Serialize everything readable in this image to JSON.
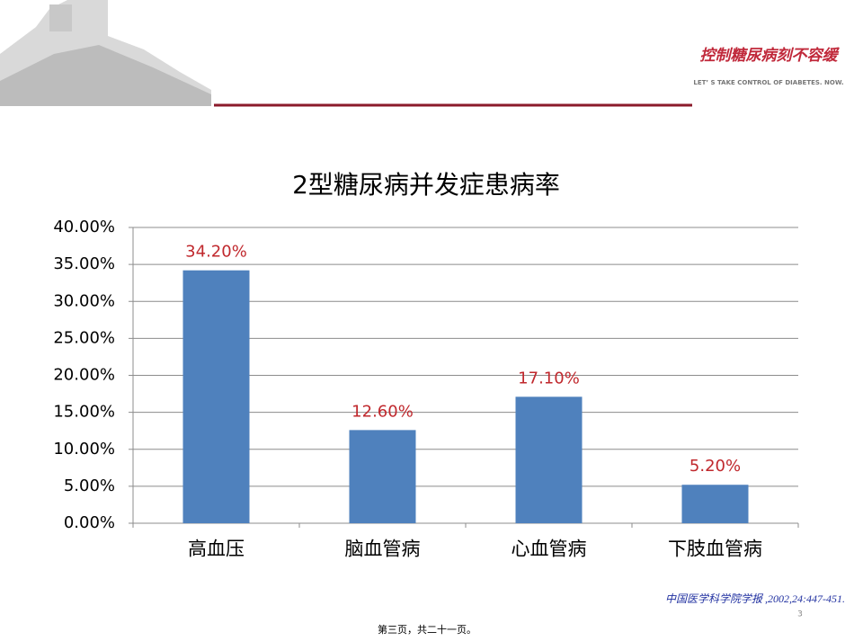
{
  "header": {
    "slogan": "控制糖尿病刻不容缓",
    "tagline": "LET’ S TAKE CONTROL OF DIABETES. NOW."
  },
  "chart_data": {
    "type": "bar",
    "title": "2型糖尿病并发症患病率",
    "categories": [
      "高血压",
      "脑血管病",
      "心血管病",
      "下肢血管病"
    ],
    "values": [
      34.2,
      12.6,
      17.1,
      5.2
    ],
    "value_labels": [
      "34.20%",
      "12.60%",
      "17.10%",
      "5.20%"
    ],
    "color": "#4f81bd",
    "value_label_color": "#c0282d",
    "ylim": [
      0,
      40
    ],
    "yticks": [
      {
        "value": 0,
        "label": "0.00%"
      },
      {
        "value": 5,
        "label": "5.00%"
      },
      {
        "value": 10,
        "label": "10.00%"
      },
      {
        "value": 15,
        "label": "15.00%"
      },
      {
        "value": 20,
        "label": "20.00%"
      },
      {
        "value": 25,
        "label": "25.00%"
      },
      {
        "value": 30,
        "label": "30.00%"
      },
      {
        "value": 35,
        "label": "35.00%"
      },
      {
        "value": 40,
        "label": "40.00%"
      }
    ],
    "grid": true
  },
  "footer": {
    "citation": "中国医学科学院学报 ,2002,24:447-451.",
    "slide_number": "3",
    "page_info": "第三页，共二十一页。"
  }
}
